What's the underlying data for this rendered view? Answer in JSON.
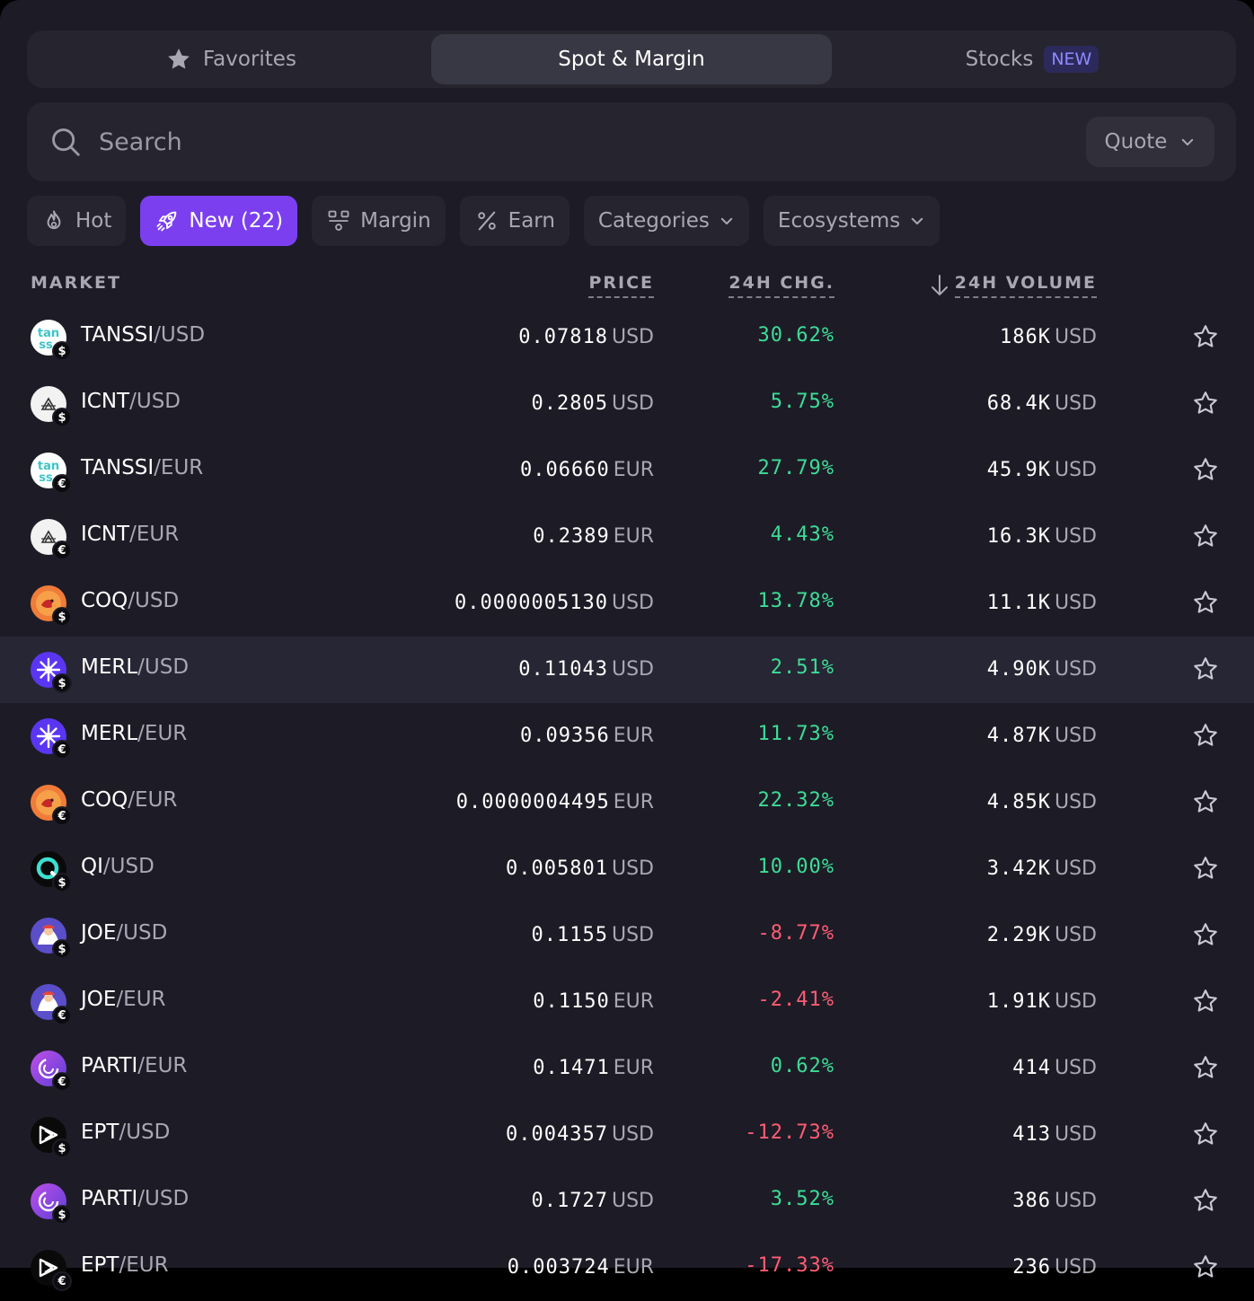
{
  "tabs": [
    {
      "label": "Favorites",
      "active": false,
      "icon": "star-icon"
    },
    {
      "label": "Spot & Margin",
      "active": true
    },
    {
      "label": "Stocks",
      "active": false,
      "badge": "NEW"
    }
  ],
  "search": {
    "placeholder": "Search",
    "value": ""
  },
  "quote": {
    "label": "Quote"
  },
  "filters": [
    {
      "label": "Hot",
      "icon": "flame-icon",
      "active": false
    },
    {
      "label": "New (22)",
      "icon": "rocket-icon",
      "active": true
    },
    {
      "label": "Margin",
      "icon": "margin-icon",
      "active": false
    },
    {
      "label": "Earn",
      "icon": "percent-icon",
      "active": false
    },
    {
      "label": "Categories",
      "dropdown": true,
      "active": false
    },
    {
      "label": "Ecosystems",
      "dropdown": true,
      "active": false
    }
  ],
  "columns": {
    "market": "MARKET",
    "price": "PRICE",
    "change": "24H CHG.",
    "volume": "24H VOLUME"
  },
  "sort": {
    "column": "24H VOLUME",
    "direction": "descending"
  },
  "colors": {
    "positive": "#3ddc97",
    "negative": "#ff5c74",
    "accent": "#7b3ff0"
  },
  "rows": [
    {
      "base": "TANSSI",
      "quote": "/USD",
      "coin": "tanssi",
      "badge": "$",
      "price": "0.07818",
      "price_unit": "USD",
      "change": "30.62%",
      "trend": "pos",
      "volume": "186K",
      "volume_unit": "USD"
    },
    {
      "base": "ICNT",
      "quote": "/USD",
      "coin": "icnt",
      "badge": "$",
      "price": "0.2805",
      "price_unit": "USD",
      "change": "5.75%",
      "trend": "pos",
      "volume": "68.4K",
      "volume_unit": "USD"
    },
    {
      "base": "TANSSI",
      "quote": "/EUR",
      "coin": "tanssi",
      "badge": "€",
      "price": "0.06660",
      "price_unit": "EUR",
      "change": "27.79%",
      "trend": "pos",
      "volume": "45.9K",
      "volume_unit": "USD"
    },
    {
      "base": "ICNT",
      "quote": "/EUR",
      "coin": "icnt",
      "badge": "€",
      "price": "0.2389",
      "price_unit": "EUR",
      "change": "4.43%",
      "trend": "pos",
      "volume": "16.3K",
      "volume_unit": "USD"
    },
    {
      "base": "COQ",
      "quote": "/USD",
      "coin": "coq",
      "badge": "$",
      "price": "0.0000005130",
      "price_unit": "USD",
      "change": "13.78%",
      "trend": "pos",
      "volume": "11.1K",
      "volume_unit": "USD"
    },
    {
      "base": "MERL",
      "quote": "/USD",
      "coin": "merl",
      "badge": "$",
      "price": "0.11043",
      "price_unit": "USD",
      "change": "2.51%",
      "trend": "pos",
      "volume": "4.90K",
      "volume_unit": "USD",
      "highlighted": true
    },
    {
      "base": "MERL",
      "quote": "/EUR",
      "coin": "merl",
      "badge": "€",
      "price": "0.09356",
      "price_unit": "EUR",
      "change": "11.73%",
      "trend": "pos",
      "volume": "4.87K",
      "volume_unit": "USD"
    },
    {
      "base": "COQ",
      "quote": "/EUR",
      "coin": "coq",
      "badge": "€",
      "price": "0.0000004495",
      "price_unit": "EUR",
      "change": "22.32%",
      "trend": "pos",
      "volume": "4.85K",
      "volume_unit": "USD"
    },
    {
      "base": "QI",
      "quote": "/USD",
      "coin": "qi",
      "badge": "$",
      "price": "0.005801",
      "price_unit": "USD",
      "change": "10.00%",
      "trend": "pos",
      "volume": "3.42K",
      "volume_unit": "USD"
    },
    {
      "base": "JOE",
      "quote": "/USD",
      "coin": "joe",
      "badge": "$",
      "price": "0.1155",
      "price_unit": "USD",
      "change": "-8.77%",
      "trend": "neg",
      "volume": "2.29K",
      "volume_unit": "USD"
    },
    {
      "base": "JOE",
      "quote": "/EUR",
      "coin": "joe",
      "badge": "€",
      "price": "0.1150",
      "price_unit": "EUR",
      "change": "-2.41%",
      "trend": "neg",
      "volume": "1.91K",
      "volume_unit": "USD"
    },
    {
      "base": "PARTI",
      "quote": "/EUR",
      "coin": "parti",
      "badge": "€",
      "price": "0.1471",
      "price_unit": "EUR",
      "change": "0.62%",
      "trend": "pos",
      "volume": "414",
      "volume_unit": "USD"
    },
    {
      "base": "EPT",
      "quote": "/USD",
      "coin": "ept",
      "badge": "$",
      "price": "0.004357",
      "price_unit": "USD",
      "change": "-12.73%",
      "trend": "neg",
      "volume": "413",
      "volume_unit": "USD"
    },
    {
      "base": "PARTI",
      "quote": "/USD",
      "coin": "parti",
      "badge": "$",
      "price": "0.1727",
      "price_unit": "USD",
      "change": "3.52%",
      "trend": "pos",
      "volume": "386",
      "volume_unit": "USD"
    },
    {
      "base": "EPT",
      "quote": "/EUR",
      "coin": "ept",
      "badge": "€",
      "price": "0.003724",
      "price_unit": "EUR",
      "change": "-17.33%",
      "trend": "neg",
      "volume": "236",
      "volume_unit": "USD"
    }
  ]
}
